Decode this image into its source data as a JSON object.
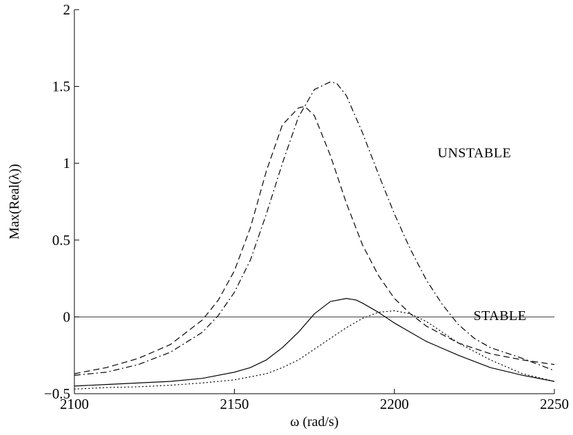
{
  "chart_data": {
    "type": "line",
    "xlabel": "ω (rad/s)",
    "ylabel": "Max(Real(λ))",
    "xlim": [
      2100,
      2250
    ],
    "ylim": [
      -0.5,
      2
    ],
    "xticks": [
      2100,
      2150,
      2200,
      2250
    ],
    "xtick_labels": [
      "2100",
      "2150",
      "2200",
      "2250"
    ],
    "yticks": [
      -0.5,
      0,
      0.5,
      1,
      1.5,
      2
    ],
    "ytick_labels": [
      "−0.5",
      "0",
      "0.5",
      "1",
      "1.5",
      "2"
    ],
    "grid": false,
    "reference_line": {
      "y": 0
    },
    "annotations": [
      {
        "text": "UNSTABLE",
        "x": 2225,
        "y": 1.04
      },
      {
        "text": "STABLE",
        "x": 2233,
        "y": -0.02
      }
    ],
    "series": [
      {
        "style": "dashed",
        "color": "#000000",
        "x": [
          2100,
          2110,
          2120,
          2130,
          2140,
          2145,
          2150,
          2155,
          2160,
          2165,
          2170,
          2172,
          2175,
          2180,
          2185,
          2190,
          2195,
          2200,
          2205,
          2210,
          2220,
          2230,
          2240,
          2250
        ],
        "y": [
          -0.37,
          -0.33,
          -0.27,
          -0.18,
          -0.02,
          0.11,
          0.3,
          0.58,
          0.95,
          1.25,
          1.36,
          1.37,
          1.31,
          1.05,
          0.74,
          0.47,
          0.27,
          0.12,
          0.02,
          -0.06,
          -0.17,
          -0.24,
          -0.28,
          -0.31
        ]
      },
      {
        "style": "dashdot",
        "color": "#000000",
        "x": [
          2100,
          2110,
          2120,
          2130,
          2140,
          2145,
          2150,
          2155,
          2160,
          2165,
          2170,
          2175,
          2180,
          2182,
          2185,
          2190,
          2195,
          2200,
          2205,
          2210,
          2215,
          2220,
          2225,
          2230,
          2240,
          2250
        ],
        "y": [
          -0.38,
          -0.36,
          -0.31,
          -0.23,
          -0.1,
          0.01,
          0.16,
          0.37,
          0.67,
          1.0,
          1.3,
          1.48,
          1.53,
          1.52,
          1.44,
          1.2,
          0.93,
          0.67,
          0.44,
          0.24,
          0.08,
          -0.05,
          -0.14,
          -0.2,
          -0.27,
          -0.35
        ]
      },
      {
        "style": "solid",
        "color": "#000000",
        "x": [
          2100,
          2110,
          2120,
          2130,
          2140,
          2150,
          2155,
          2160,
          2165,
          2170,
          2175,
          2180,
          2185,
          2188,
          2190,
          2195,
          2200,
          2205,
          2210,
          2220,
          2230,
          2240,
          2250
        ],
        "y": [
          -0.45,
          -0.44,
          -0.43,
          -0.42,
          -0.4,
          -0.36,
          -0.33,
          -0.28,
          -0.2,
          -0.1,
          0.02,
          0.1,
          0.12,
          0.11,
          0.09,
          0.03,
          -0.04,
          -0.1,
          -0.16,
          -0.25,
          -0.33,
          -0.38,
          -0.42
        ]
      },
      {
        "style": "dotted",
        "color": "#000000",
        "x": [
          2100,
          2110,
          2120,
          2130,
          2140,
          2150,
          2160,
          2165,
          2170,
          2175,
          2180,
          2185,
          2190,
          2195,
          2200,
          2205,
          2210,
          2215,
          2220,
          2230,
          2240,
          2250
        ],
        "y": [
          -0.47,
          -0.46,
          -0.455,
          -0.445,
          -0.43,
          -0.41,
          -0.37,
          -0.33,
          -0.28,
          -0.21,
          -0.14,
          -0.07,
          -0.01,
          0.03,
          0.04,
          0.02,
          -0.03,
          -0.1,
          -0.17,
          -0.28,
          -0.37,
          -0.42
        ]
      }
    ]
  }
}
